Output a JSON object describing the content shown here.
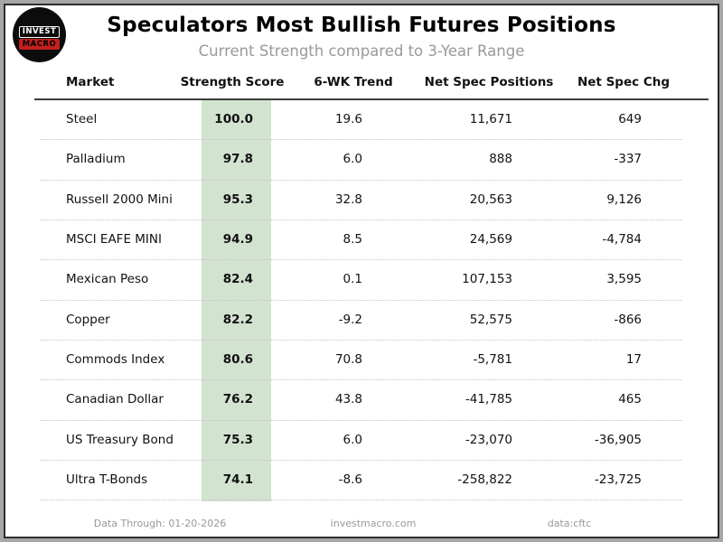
{
  "header": {
    "title": "Speculators Most Bullish Futures Positions",
    "subtitle": "Current Strength compared to 3-Year Range",
    "logo": {
      "line1": "INVEST",
      "line2": "MACRO"
    }
  },
  "table": {
    "columns": [
      "Market",
      "Strength Score",
      "6-WK Trend",
      "Net Spec Positions",
      "Net Spec Chg"
    ],
    "rows": [
      {
        "market": "Steel",
        "score": "100.0",
        "trend": "19.6",
        "net_positions": "11,671",
        "net_change": "649"
      },
      {
        "market": "Palladium",
        "score": "97.8",
        "trend": "6.0",
        "net_positions": "888",
        "net_change": "-337"
      },
      {
        "market": "Russell 2000 Mini",
        "score": "95.3",
        "trend": "32.8",
        "net_positions": "20,563",
        "net_change": "9,126"
      },
      {
        "market": "MSCI EAFE MINI",
        "score": "94.9",
        "trend": "8.5",
        "net_positions": "24,569",
        "net_change": "-4,784"
      },
      {
        "market": "Mexican Peso",
        "score": "82.4",
        "trend": "0.1",
        "net_positions": "107,153",
        "net_change": "3,595"
      },
      {
        "market": "Copper",
        "score": "82.2",
        "trend": "-9.2",
        "net_positions": "52,575",
        "net_change": "-866"
      },
      {
        "market": "Commods Index",
        "score": "80.6",
        "trend": "70.8",
        "net_positions": "-5,781",
        "net_change": "17"
      },
      {
        "market": "Canadian Dollar",
        "score": "76.2",
        "trend": "43.8",
        "net_positions": "-41,785",
        "net_change": "465"
      },
      {
        "market": "US Treasury Bond",
        "score": "75.3",
        "trend": "6.0",
        "net_positions": "-23,070",
        "net_change": "-36,905"
      },
      {
        "market": "Ultra T-Bonds",
        "score": "74.1",
        "trend": "-8.6",
        "net_positions": "-258,822",
        "net_change": "-23,725"
      }
    ]
  },
  "footer": {
    "data_through": "Data Through: 01-20-2026",
    "website": "investmacro.com",
    "source": "data:cftc"
  },
  "colors": {
    "score_band": "#d2e3d0",
    "logo_red": "#c41f1f",
    "frame_gray": "#a6a6a6",
    "muted_text": "#999999"
  },
  "chart_data": {
    "type": "table",
    "title": "Speculators Most Bullish Futures Positions",
    "subtitle": "Current Strength compared to 3-Year Range",
    "columns": [
      "Market",
      "Strength Score",
      "6-WK Trend",
      "Net Spec Positions",
      "Net Spec Chg"
    ],
    "rows": [
      [
        "Steel",
        100.0,
        19.6,
        11671,
        649
      ],
      [
        "Palladium",
        97.8,
        6.0,
        888,
        -337
      ],
      [
        "Russell 2000 Mini",
        95.3,
        32.8,
        20563,
        9126
      ],
      [
        "MSCI EAFE MINI",
        94.9,
        8.5,
        24569,
        -4784
      ],
      [
        "Mexican Peso",
        82.4,
        0.1,
        107153,
        3595
      ],
      [
        "Copper",
        82.2,
        -9.2,
        52575,
        -866
      ],
      [
        "Commods Index",
        80.6,
        70.8,
        -5781,
        17
      ],
      [
        "Canadian Dollar",
        76.2,
        43.8,
        -41785,
        465
      ],
      [
        "US Treasury Bond",
        75.3,
        6.0,
        -23070,
        -36905
      ],
      [
        "Ultra T-Bonds",
        74.1,
        -8.6,
        -258822,
        -23725
      ]
    ],
    "layout_hints": {
      "score_column_highlight": "#d2e3d0",
      "row_separator": "dotted",
      "numeric_alignment": "right"
    }
  }
}
